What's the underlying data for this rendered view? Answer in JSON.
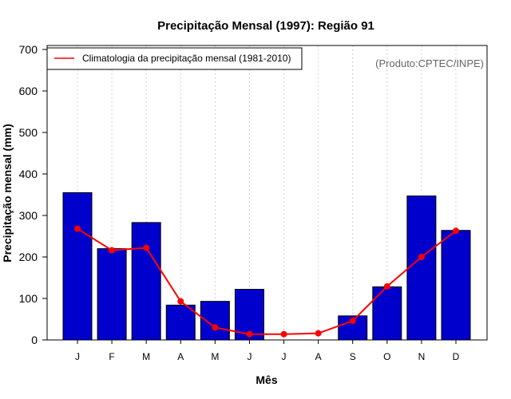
{
  "chart_data": {
    "type": "bar",
    "title": "Precipitação Mensal (1997): Região 91",
    "xlabel": "Mês",
    "ylabel": "Precipitação mensal (mm)",
    "ylim": [
      0,
      700
    ],
    "yticks": [
      0,
      100,
      200,
      300,
      400,
      500,
      600,
      700
    ],
    "categories": [
      "J",
      "F",
      "M",
      "A",
      "M",
      "J",
      "J",
      "A",
      "S",
      "O",
      "N",
      "D"
    ],
    "series": [
      {
        "name": "Precipitação mensal (1997)",
        "type": "bar",
        "color": "#0000CC",
        "values": [
          355,
          220,
          283,
          84,
          93,
          122,
          0,
          0,
          58,
          128,
          347,
          264
        ]
      },
      {
        "name": "Climatologia da precipitação mensal (1981-2010)",
        "type": "line",
        "color": "#FF0000",
        "values": [
          268,
          216,
          222,
          93,
          30,
          14,
          14,
          16,
          46,
          129,
          200,
          263
        ]
      }
    ],
    "legend": {
      "position": "top-left",
      "entries": [
        "Climatologia da precipitação mensal (1981-2010)"
      ]
    },
    "grid": "vertical dotted",
    "annotation": "(Produto:CPTEC/INPE)"
  }
}
